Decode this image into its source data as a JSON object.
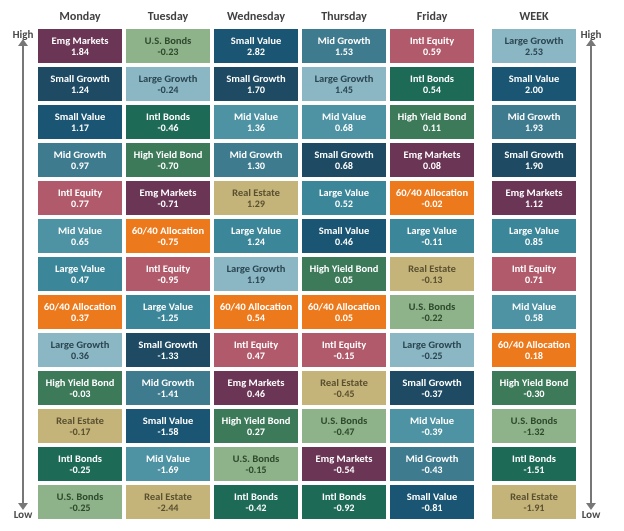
{
  "axis": {
    "high": "High",
    "low": "Low"
  },
  "columns": [
    "Monday",
    "Tuesday",
    "Wednesday",
    "Thursday",
    "Friday",
    "WEEK"
  ],
  "colors": {
    "Emg Markets": "#6b3555",
    "U.S. Bonds": "#8eb28a",
    "Small Value": "#1a5573",
    "Mid Growth": "#3f7b8f",
    "Intl Equity": "#b05a6b",
    "Large Growth": "#8bb7c5",
    "Small Growth": "#1e4a63",
    "Intl Bonds": "#1d6a56",
    "Mid Value": "#4e93a3",
    "High Yield Bond": "#3d7a5a",
    "Real Estate": "#c4b47a",
    "Large Value": "#3b8699",
    "60/40 Allocation": "#ec7a1d"
  },
  "grid": {
    "Monday": [
      {
        "n": "Emg Markets",
        "v": "1.84"
      },
      {
        "n": "Small Growth",
        "v": "1.24"
      },
      {
        "n": "Small Value",
        "v": "1.17"
      },
      {
        "n": "Mid Growth",
        "v": "0.97"
      },
      {
        "n": "Intl Equity",
        "v": "0.77"
      },
      {
        "n": "Mid Value",
        "v": "0.65"
      },
      {
        "n": "Large Value",
        "v": "0.47"
      },
      {
        "n": "60/40 Allocation",
        "v": "0.37"
      },
      {
        "n": "Large Growth",
        "v": "0.36"
      },
      {
        "n": "High Yield Bond",
        "v": "-0.03"
      },
      {
        "n": "Real Estate",
        "v": "-0.17"
      },
      {
        "n": "Intl Bonds",
        "v": "-0.25"
      },
      {
        "n": "U.S. Bonds",
        "v": "-0.25"
      }
    ],
    "Tuesday": [
      {
        "n": "U.S. Bonds",
        "v": "-0.23"
      },
      {
        "n": "Large Growth",
        "v": "-0.24"
      },
      {
        "n": "Intl Bonds",
        "v": "-0.46"
      },
      {
        "n": "High Yield Bond",
        "v": "-0.70"
      },
      {
        "n": "Emg Markets",
        "v": "-0.71"
      },
      {
        "n": "60/40 Allocation",
        "v": "-0.75"
      },
      {
        "n": "Intl Equity",
        "v": "-0.95"
      },
      {
        "n": "Large Value",
        "v": "-1.25"
      },
      {
        "n": "Small Growth",
        "v": "-1.33"
      },
      {
        "n": "Mid Growth",
        "v": "-1.41"
      },
      {
        "n": "Small Value",
        "v": "-1.58"
      },
      {
        "n": "Mid Value",
        "v": "-1.69"
      },
      {
        "n": "Real Estate",
        "v": "-2.44"
      }
    ],
    "Wednesday": [
      {
        "n": "Small Value",
        "v": "2.82"
      },
      {
        "n": "Small Growth",
        "v": "1.70"
      },
      {
        "n": "Mid Value",
        "v": "1.36"
      },
      {
        "n": "Mid Growth",
        "v": "1.30"
      },
      {
        "n": "Real Estate",
        "v": "1.29"
      },
      {
        "n": "Large Value",
        "v": "1.24"
      },
      {
        "n": "Large Growth",
        "v": "1.19"
      },
      {
        "n": "60/40 Allocation",
        "v": "0.54"
      },
      {
        "n": "Intl Equity",
        "v": "0.47"
      },
      {
        "n": "Emg Markets",
        "v": "0.46"
      },
      {
        "n": "High Yield Bond",
        "v": "0.27"
      },
      {
        "n": "U.S. Bonds",
        "v": "-0.15"
      },
      {
        "n": "Intl Bonds",
        "v": "-0.42"
      }
    ],
    "Thursday": [
      {
        "n": "Mid Growth",
        "v": "1.53"
      },
      {
        "n": "Large Growth",
        "v": "1.45"
      },
      {
        "n": "Mid Value",
        "v": "0.68"
      },
      {
        "n": "Small Growth",
        "v": "0.68"
      },
      {
        "n": "Large Value",
        "v": "0.52"
      },
      {
        "n": "Small Value",
        "v": "0.46"
      },
      {
        "n": "High Yield Bond",
        "v": "0.05"
      },
      {
        "n": "60/40 Allocation",
        "v": "0.05"
      },
      {
        "n": "Intl Equity",
        "v": "-0.15"
      },
      {
        "n": "Real Estate",
        "v": "-0.45"
      },
      {
        "n": "U.S. Bonds",
        "v": "-0.47"
      },
      {
        "n": "Emg Markets",
        "v": "-0.54"
      },
      {
        "n": "Intl Bonds",
        "v": "-0.92"
      }
    ],
    "Friday": [
      {
        "n": "Intl Equity",
        "v": "0.59"
      },
      {
        "n": "Intl Bonds",
        "v": "0.54"
      },
      {
        "n": "High Yield Bond",
        "v": "0.11"
      },
      {
        "n": "Emg Markets",
        "v": "0.08"
      },
      {
        "n": "60/40 Allocation",
        "v": "-0.02"
      },
      {
        "n": "Large Value",
        "v": "-0.11"
      },
      {
        "n": "Real Estate",
        "v": "-0.13"
      },
      {
        "n": "U.S. Bonds",
        "v": "-0.22"
      },
      {
        "n": "Large Growth",
        "v": "-0.25"
      },
      {
        "n": "Small Growth",
        "v": "-0.37"
      },
      {
        "n": "Mid Value",
        "v": "-0.39"
      },
      {
        "n": "Mid Growth",
        "v": "-0.43"
      },
      {
        "n": "Small Value",
        "v": "-0.81"
      }
    ],
    "WEEK": [
      {
        "n": "Large Growth",
        "v": "2.53"
      },
      {
        "n": "Small Value",
        "v": "2.00"
      },
      {
        "n": "Mid Growth",
        "v": "1.93"
      },
      {
        "n": "Small Growth",
        "v": "1.90"
      },
      {
        "n": "Emg Markets",
        "v": "1.12"
      },
      {
        "n": "Large Value",
        "v": "0.85"
      },
      {
        "n": "Intl Equity",
        "v": "0.71"
      },
      {
        "n": "Mid Value",
        "v": "0.58"
      },
      {
        "n": "60/40 Allocation",
        "v": "0.18"
      },
      {
        "n": "High Yield Bond",
        "v": "-0.30"
      },
      {
        "n": "U.S. Bonds",
        "v": "-1.32"
      },
      {
        "n": "Intl Bonds",
        "v": "-1.51"
      },
      {
        "n": "Real Estate",
        "v": "-1.91"
      }
    ]
  },
  "textColorOverrides": {
    "Real Estate": "#5a5030",
    "U.S. Bonds": "#2d4a2a",
    "Large Growth": "#2a4550"
  }
}
